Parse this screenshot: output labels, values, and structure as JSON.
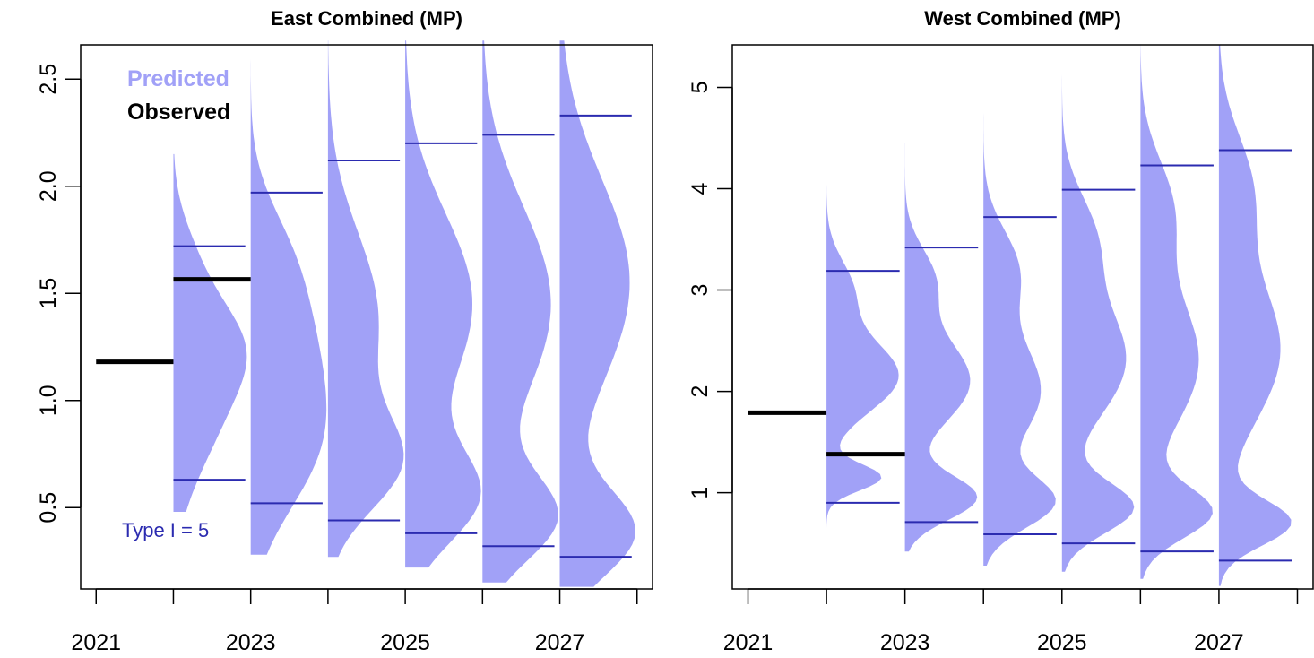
{
  "colors": {
    "predicted_fill": "#a1a1f7",
    "interval_line": "#2b2bb0",
    "observed": "#000000",
    "legend_predicted": "#a1a1f7",
    "annotation": "#2b2bb0"
  },
  "chart_data": [
    {
      "type": "violin",
      "title": "East Combined (MP)",
      "xlabel": "",
      "ylabel": "",
      "xlim": [
        2020.8,
        2028.2
      ],
      "ylim": [
        0.12,
        2.66
      ],
      "x_ticks": [
        2021,
        2022,
        2023,
        2024,
        2025,
        2026,
        2027,
        2028
      ],
      "x_tick_labels": [
        "2021",
        "",
        "2023",
        "",
        "2025",
        "",
        "2027",
        ""
      ],
      "y_ticks": [
        0.5,
        1.0,
        1.5,
        2.0,
        2.5
      ],
      "y_tick_labels": [
        "0.5",
        "1.0",
        "1.5",
        "2.0",
        "2.5"
      ],
      "legend": {
        "position": "top-left",
        "entries": [
          {
            "label": "Predicted",
            "color": "#a1a1f7"
          },
          {
            "label": "Observed",
            "color": "#000000"
          }
        ]
      },
      "annotation": "Type I = 5",
      "observed": [
        {
          "x": [
            2021,
            2022
          ],
          "y": 1.18
        },
        {
          "x": [
            2022,
            2023
          ],
          "y": 1.565
        }
      ],
      "predicted": [
        {
          "year": 2022,
          "min": 0.48,
          "max": 2.15,
          "lower": 0.63,
          "upper": 1.72,
          "width": 0.95,
          "peaks": [
            [
              1.0,
              1.0,
              0.32
            ],
            [
              1.28,
              0.75,
              0.2
            ],
            [
              1.65,
              0.35,
              0.2
            ]
          ]
        },
        {
          "year": 2023,
          "min": 0.28,
          "max": 2.62,
          "lower": 0.52,
          "upper": 1.97,
          "width": 0.98,
          "peaks": [
            [
              0.75,
              1.0,
              0.3
            ],
            [
              1.25,
              0.95,
              0.32
            ],
            [
              1.7,
              0.45,
              0.25
            ]
          ]
        },
        {
          "year": 2024,
          "min": 0.27,
          "max": 2.68,
          "lower": 0.44,
          "upper": 2.12,
          "width": 0.98,
          "peaks": [
            [
              0.7,
              1.0,
              0.22
            ],
            [
              1.38,
              0.8,
              0.4
            ]
          ]
        },
        {
          "year": 2025,
          "min": 0.22,
          "max": 2.68,
          "lower": 0.38,
          "upper": 2.2,
          "width": 0.98,
          "peaks": [
            [
              0.55,
              1.0,
              0.22
            ],
            [
              1.45,
              0.98,
              0.42
            ]
          ]
        },
        {
          "year": 2026,
          "min": 0.15,
          "max": 2.68,
          "lower": 0.32,
          "upper": 2.24,
          "width": 0.98,
          "peaks": [
            [
              0.45,
              1.0,
              0.2
            ],
            [
              1.45,
              0.98,
              0.45
            ]
          ]
        },
        {
          "year": 2027,
          "min": 0.13,
          "max": 2.68,
          "lower": 0.27,
          "upper": 2.33,
          "width": 0.98,
          "peaks": [
            [
              0.38,
              1.0,
              0.2
            ],
            [
              1.55,
              0.97,
              0.48
            ]
          ]
        }
      ]
    },
    {
      "type": "violin",
      "title": "West Combined (MP)",
      "xlabel": "",
      "ylabel": "",
      "xlim": [
        2020.8,
        2028.2
      ],
      "ylim": [
        0.05,
        5.42
      ],
      "x_ticks": [
        2021,
        2022,
        2023,
        2024,
        2025,
        2026,
        2027,
        2028
      ],
      "x_tick_labels": [
        "2021",
        "",
        "2023",
        "",
        "2025",
        "",
        "2027",
        ""
      ],
      "y_ticks": [
        1,
        2,
        3,
        4,
        5
      ],
      "y_tick_labels": [
        "1",
        "2",
        "3",
        "4",
        "5"
      ],
      "observed": [
        {
          "x": [
            2021,
            2022
          ],
          "y": 1.79
        },
        {
          "x": [
            2022,
            2023
          ],
          "y": 1.38
        }
      ],
      "predicted": [
        {
          "year": 2022,
          "min": 0.57,
          "max": 4.25,
          "lower": 0.9,
          "upper": 3.19,
          "width": 0.92,
          "peaks": [
            [
              1.15,
              0.75,
              0.13
            ],
            [
              2.15,
              1.0,
              0.35
            ],
            [
              3.0,
              0.35,
              0.3
            ]
          ]
        },
        {
          "year": 2023,
          "min": 0.42,
          "max": 4.45,
          "lower": 0.71,
          "upper": 3.42,
          "width": 0.92,
          "peaks": [
            [
              0.95,
              1.0,
              0.22
            ],
            [
              2.1,
              0.92,
              0.42
            ],
            [
              3.1,
              0.4,
              0.32
            ]
          ]
        },
        {
          "year": 2024,
          "min": 0.28,
          "max": 5.25,
          "lower": 0.59,
          "upper": 3.72,
          "width": 0.92,
          "peaks": [
            [
              0.9,
              1.0,
              0.25
            ],
            [
              2.0,
              0.85,
              0.5
            ],
            [
              3.2,
              0.5,
              0.4
            ]
          ]
        },
        {
          "year": 2025,
          "min": 0.22,
          "max": 5.42,
          "lower": 0.5,
          "upper": 3.99,
          "width": 0.92,
          "peaks": [
            [
              0.85,
              1.0,
              0.25
            ],
            [
              2.3,
              0.9,
              0.55
            ],
            [
              3.5,
              0.45,
              0.45
            ]
          ]
        },
        {
          "year": 2026,
          "min": 0.15,
          "max": 5.42,
          "lower": 0.42,
          "upper": 4.23,
          "width": 0.92,
          "peaks": [
            [
              0.8,
              1.0,
              0.25
            ],
            [
              2.3,
              0.85,
              0.65
            ],
            [
              3.8,
              0.45,
              0.5
            ]
          ]
        },
        {
          "year": 2027,
          "min": 0.08,
          "max": 5.42,
          "lower": 0.33,
          "upper": 4.38,
          "width": 0.92,
          "peaks": [
            [
              0.7,
              1.0,
              0.22
            ],
            [
              2.4,
              0.88,
              0.7
            ],
            [
              4.0,
              0.45,
              0.55
            ]
          ]
        }
      ]
    }
  ]
}
